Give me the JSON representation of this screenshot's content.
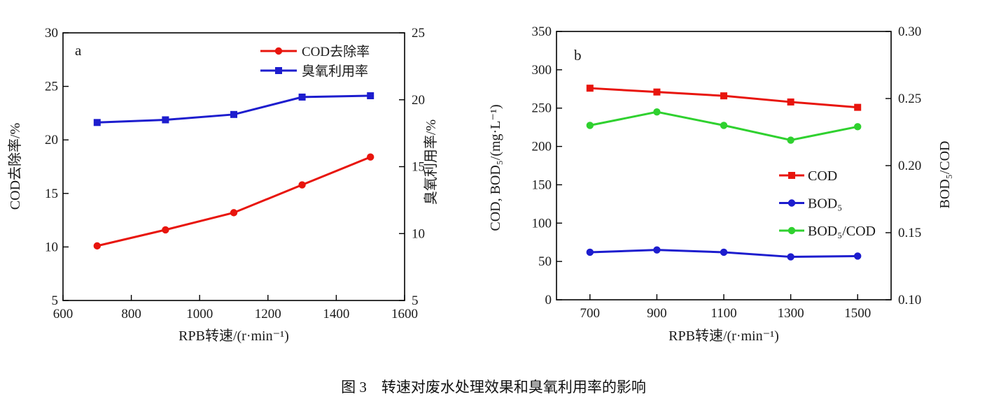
{
  "figure": {
    "caption": "图 3　转速对废水处理效果和臭氧利用率的影响"
  },
  "chart_data": [
    {
      "id": "a",
      "type": "line",
      "panel_label": "a",
      "xlabel": "RPB转速/(r·min⁻¹)",
      "xlim": [
        600,
        1600
      ],
      "x_ticks": [
        "600",
        "800",
        "1000",
        "1200",
        "1400",
        "1600"
      ],
      "x": [
        700,
        900,
        1100,
        1300,
        1500
      ],
      "left_axis": {
        "label": "COD去除率/%",
        "lim": [
          5,
          30
        ],
        "ticks": [
          "5",
          "10",
          "15",
          "20",
          "25",
          "30"
        ]
      },
      "right_axis": {
        "label": "臭氧利用率/%",
        "lim": [
          5,
          25
        ],
        "ticks": [
          "5",
          "10",
          "15",
          "20",
          "25"
        ]
      },
      "grid": false,
      "legend_position": "upper-right-inside",
      "series": [
        {
          "name": "COD去除率",
          "axis": "left",
          "color": "#e8150d",
          "marker": "circle",
          "values": [
            10.1,
            11.6,
            13.2,
            15.8,
            18.4
          ]
        },
        {
          "name": "臭氧利用率",
          "axis": "right",
          "color": "#1d1dce",
          "marker": "square",
          "values": [
            18.3,
            18.5,
            18.9,
            20.2,
            20.3
          ]
        }
      ]
    },
    {
      "id": "b",
      "type": "line",
      "panel_label": "b",
      "xlabel": "RPB转速/(r·min⁻¹)",
      "xlim": [
        600,
        1600
      ],
      "x_ticks": [
        "700",
        "900",
        "1100",
        "1300",
        "1500"
      ],
      "x": [
        700,
        900,
        1100,
        1300,
        1500
      ],
      "left_axis": {
        "label": "COD, BOD₅/(mg·L⁻¹)",
        "lim": [
          0,
          350
        ],
        "ticks": [
          "0",
          "50",
          "100",
          "150",
          "200",
          "250",
          "300",
          "350"
        ]
      },
      "right_axis": {
        "label": "BOD₅/COD",
        "lim": [
          0.1,
          0.3
        ],
        "ticks": [
          "0.10",
          "0.15",
          "0.20",
          "0.25",
          "0.30"
        ]
      },
      "grid": false,
      "legend_position": "middle-right-inside",
      "series": [
        {
          "name": "COD",
          "axis": "left",
          "color": "#e8150d",
          "marker": "square",
          "values": [
            276,
            271,
            266,
            258,
            251
          ]
        },
        {
          "name": "BOD₅",
          "axis": "left",
          "color": "#1d1dce",
          "marker": "circle",
          "values": [
            62,
            65,
            62,
            56,
            57
          ]
        },
        {
          "name": "BOD₅/COD",
          "axis": "right",
          "color": "#2fd12f",
          "marker": "circle",
          "values": [
            0.23,
            0.24,
            0.23,
            0.219,
            0.229
          ]
        }
      ]
    }
  ]
}
